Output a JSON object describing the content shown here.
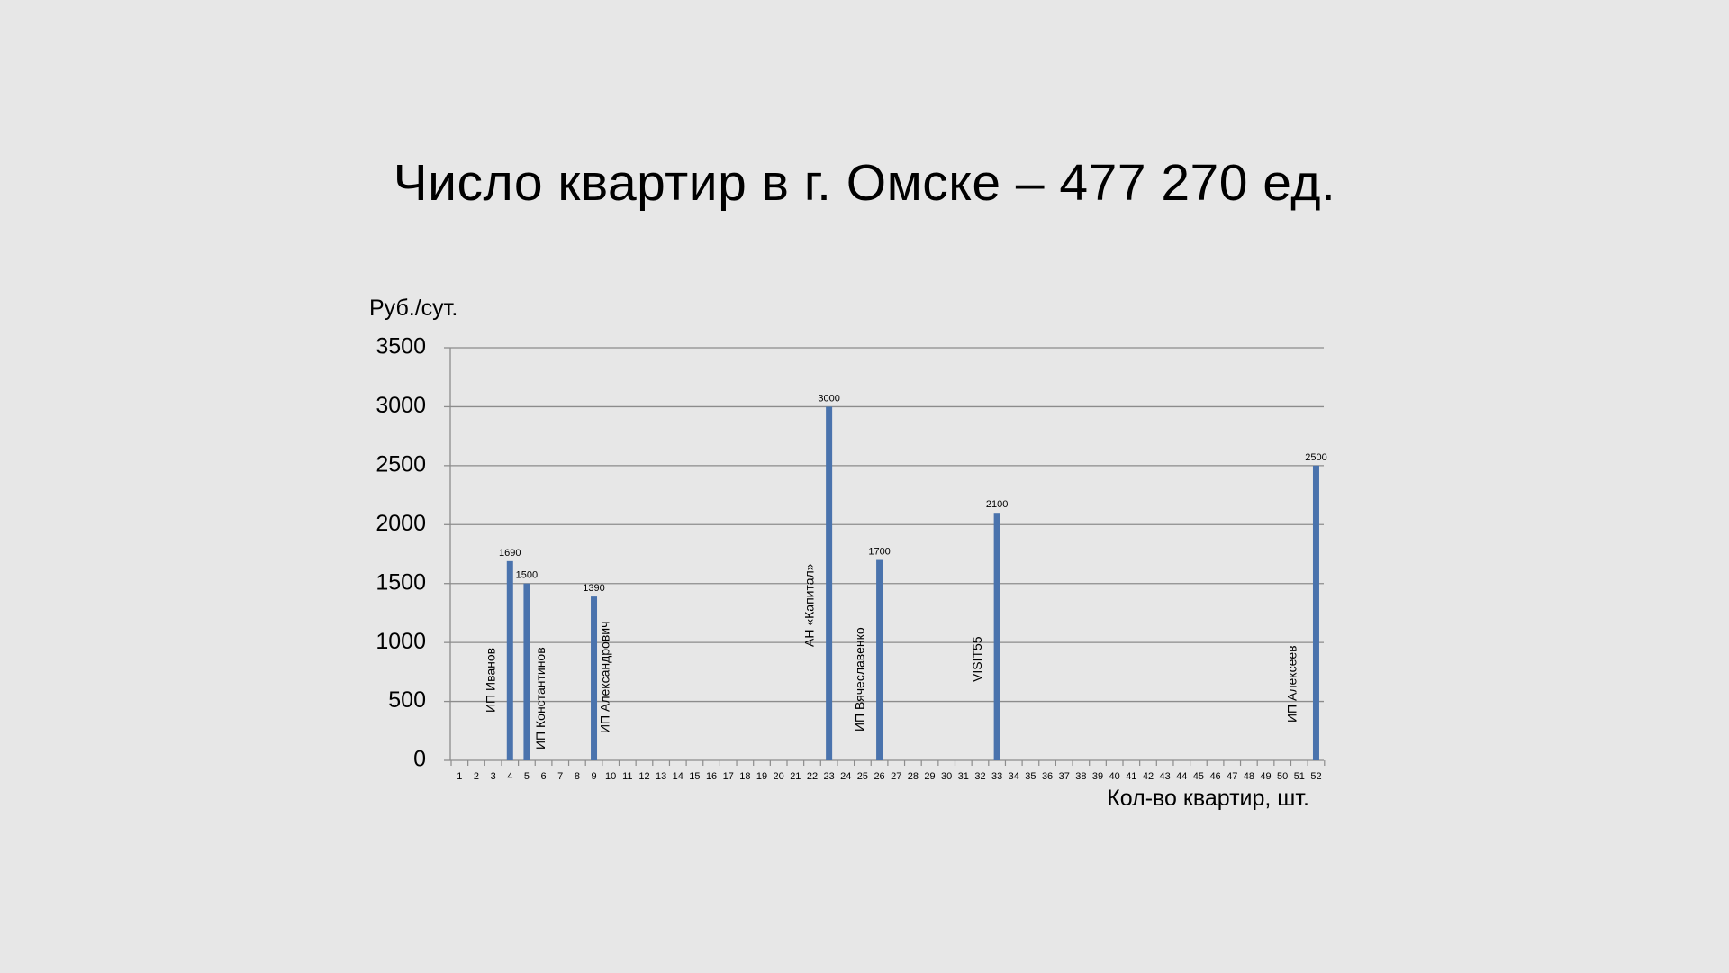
{
  "slide": {
    "title": "Число квартир в г. Омске – 477 270 ед."
  },
  "chart_data": {
    "type": "bar",
    "xlabel": "Кол-во квартир, шт.",
    "ylabel": "Руб./сут.",
    "ylim": [
      0,
      3500
    ],
    "yticks": [
      0,
      500,
      1000,
      1500,
      2000,
      2500,
      3000,
      3500
    ],
    "grid": true,
    "x_categories": [
      1,
      2,
      3,
      4,
      5,
      6,
      7,
      8,
      9,
      10,
      11,
      12,
      13,
      14,
      15,
      16,
      17,
      18,
      19,
      20,
      21,
      22,
      23,
      24,
      25,
      26,
      27,
      28,
      29,
      30,
      31,
      32,
      33,
      34,
      35,
      36,
      37,
      38,
      39,
      40,
      41,
      42,
      43,
      44,
      45,
      46,
      47,
      48,
      49,
      50,
      51,
      52
    ],
    "bars": [
      {
        "x": 4,
        "value": 1690,
        "label": "ИП Иванов"
      },
      {
        "x": 5,
        "value": 1500,
        "label": "ИП Константинов"
      },
      {
        "x": 9,
        "value": 1390,
        "label": "ИП Александрович"
      },
      {
        "x": 23,
        "value": 3000,
        "label": "АН «Капитал»"
      },
      {
        "x": 26,
        "value": 1700,
        "label": "ИП Вячеславенко"
      },
      {
        "x": 33,
        "value": 2100,
        "label": "VISIT55"
      },
      {
        "x": 52,
        "value": 2500,
        "label": "ИП Алексеев"
      }
    ],
    "colors": {
      "bar": "#4a73ad",
      "grid": "#8c8c8c",
      "axis": "#8c8c8c"
    }
  }
}
